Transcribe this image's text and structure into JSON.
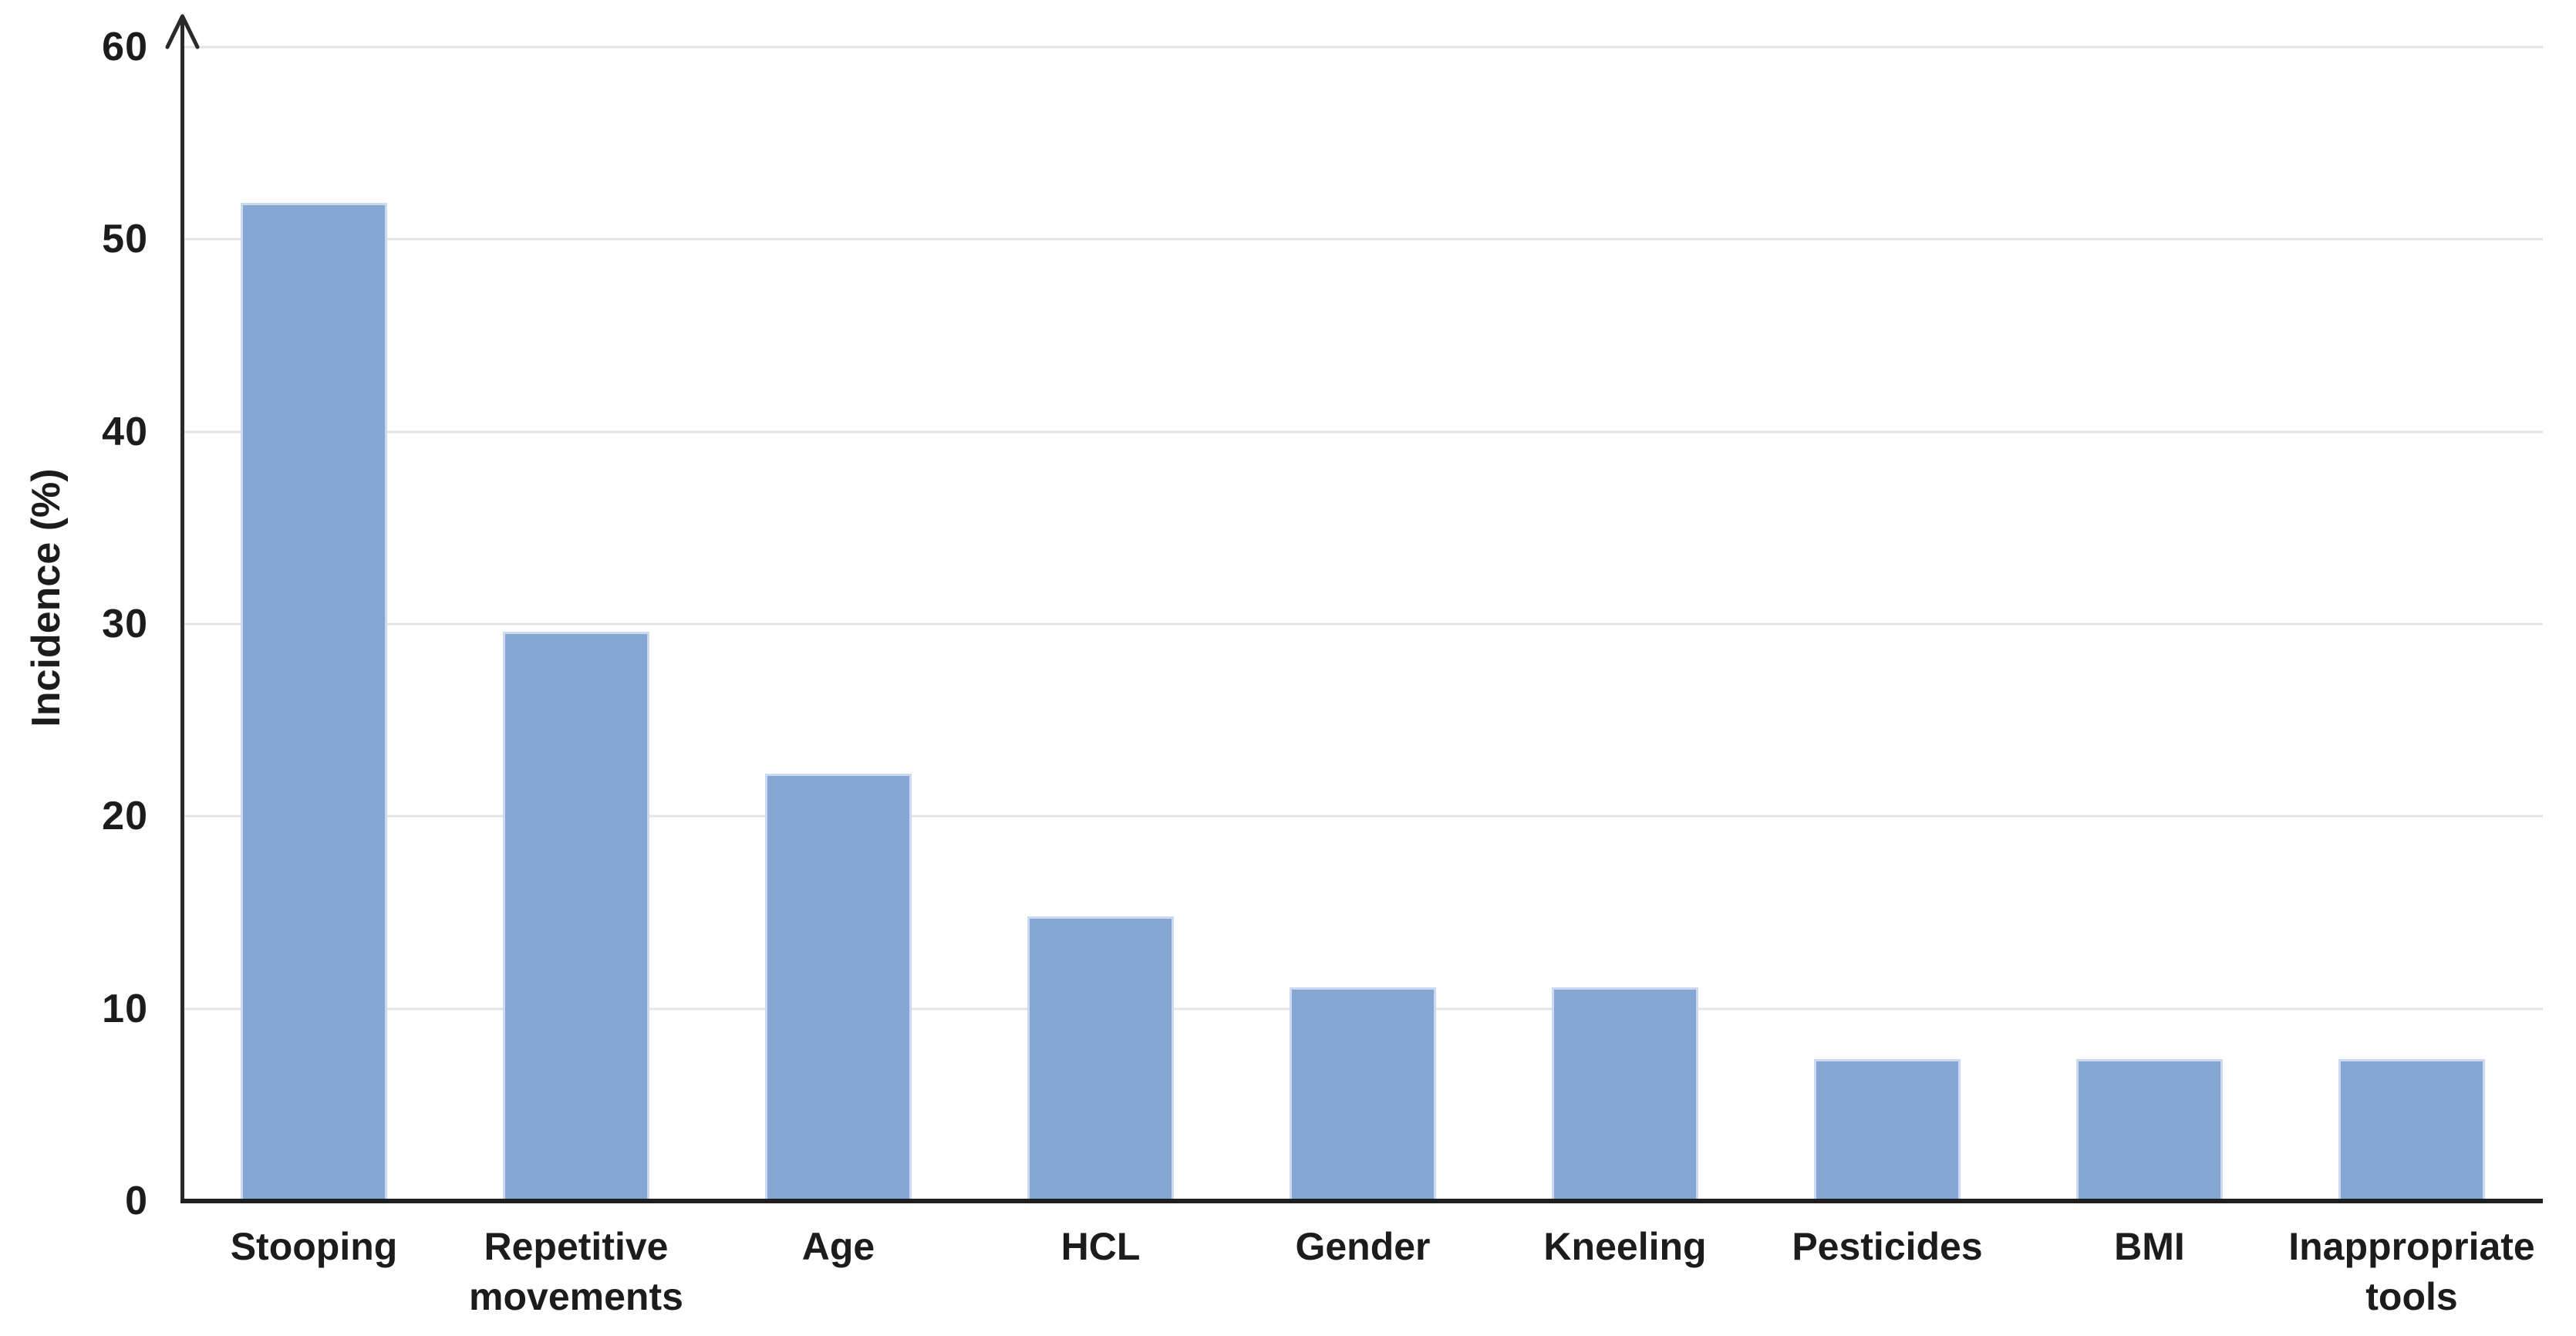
{
  "chart_data": {
    "type": "bar",
    "title": "",
    "xlabel": "",
    "ylabel": "Incidence (%)",
    "categories": [
      "Stooping",
      "Repetitive movements",
      "Age",
      "HCL",
      "Gender",
      "Kneeling",
      "Pesticides",
      "BMI",
      "Inappropriate tools"
    ],
    "values": [
      51.9,
      29.6,
      22.2,
      14.8,
      11.1,
      11.1,
      7.4,
      7.4,
      7.4
    ],
    "ylim": [
      0,
      60
    ],
    "yticks": [
      0,
      10,
      20,
      30,
      40,
      50,
      60
    ],
    "grid": true,
    "legend": "none",
    "bar_color": "#84a7d3",
    "bar_edge_color": "#ccd9ee",
    "gridline_color": "#e4e4e4",
    "axis_color": "#1f1f1f",
    "text_color": "#1c1c1c"
  }
}
